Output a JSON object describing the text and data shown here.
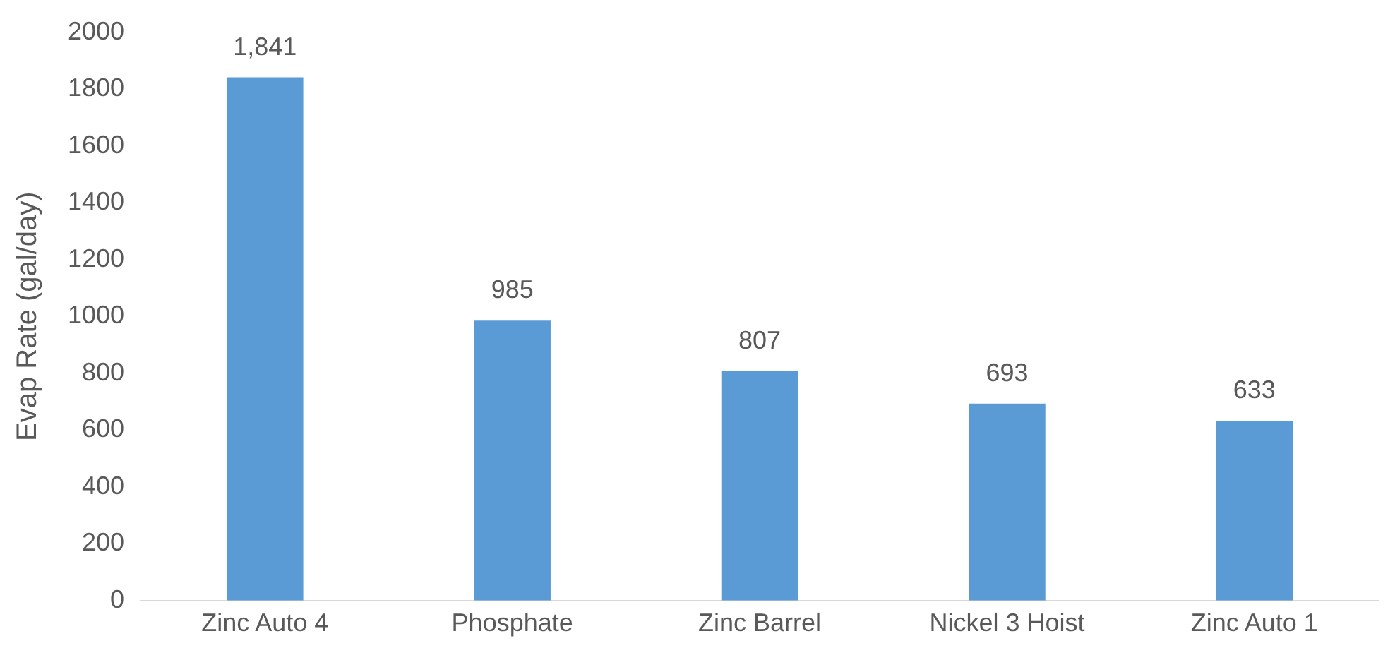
{
  "chart_data": {
    "type": "bar",
    "ylabel": "Evap Rate (gal/day)",
    "categories": [
      "Zinc Auto 4",
      "Phosphate",
      "Zinc Barrel",
      "Nickel 3 Hoist",
      "Zinc Auto 1"
    ],
    "values": [
      1841,
      985,
      807,
      693,
      633
    ],
    "value_labels": [
      "1,841",
      "985",
      "807",
      "693",
      "633"
    ],
    "color": "#5b9bd5",
    "ylim": [
      0,
      2000
    ],
    "yticks": [
      0,
      200,
      400,
      600,
      800,
      1000,
      1200,
      1400,
      1600,
      1800,
      2000
    ],
    "grid": false,
    "legend": false
  }
}
